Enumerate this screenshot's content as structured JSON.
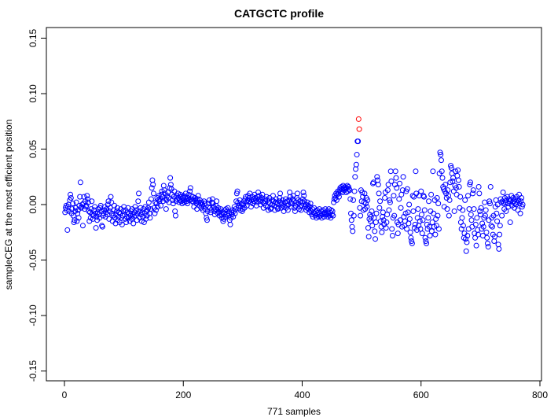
{
  "chart_data": {
    "type": "scatter",
    "title": "CATGCTC profile",
    "xlabel": "771 samples",
    "ylabel": "sampleCEG at the most efficient position",
    "xlim": [
      0,
      800
    ],
    "ylim": [
      -0.15,
      0.15
    ],
    "xticks": [
      "0",
      "200",
      "400",
      "600",
      "800"
    ],
    "yticks": [
      "-0.15",
      "-0.10",
      "-0.05",
      "0.00",
      "0.05",
      "0.10",
      "0.15"
    ],
    "grid": false,
    "marker": "open-circle",
    "point_color": "#0000ff",
    "highlight_color": "#ff0000",
    "highlight_indices": [
      495,
      496
    ],
    "x_start": 1,
    "y": [
      -0.007,
      -0.003,
      -0.001,
      -0.005,
      -0.023,
      -0.002,
      0.0,
      -0.006,
      0.004,
      0.009,
      0.006,
      -0.008,
      -0.004,
      0.001,
      -0.01,
      -0.016,
      -0.014,
      -0.006,
      -0.003,
      0.002,
      -0.015,
      -0.008,
      -0.005,
      -0.012,
      -0.001,
      0.007,
      0.02,
      -0.003,
      -0.002,
      0.0,
      -0.019,
      0.001,
      0.007,
      -0.004,
      0.003,
      -0.002,
      -0.001,
      0.008,
      0.005,
      0.002,
      -0.006,
      -0.015,
      -0.007,
      -0.012,
      -0.004,
      0.003,
      -0.009,
      -0.013,
      -0.01,
      -0.005,
      -0.002,
      -0.008,
      -0.021,
      -0.011,
      -0.014,
      -0.007,
      -0.004,
      -0.009,
      -0.012,
      -0.003,
      -0.001,
      -0.006,
      -0.019,
      -0.02,
      -0.01,
      -0.008,
      -0.005,
      -0.002,
      -0.011,
      -0.007,
      -0.004,
      -0.009,
      0.0,
      0.003,
      -0.013,
      -0.006,
      -0.003,
      0.007,
      0.002,
      -0.008,
      -0.015,
      -0.01,
      -0.005,
      -0.001,
      -0.012,
      -0.017,
      -0.009,
      -0.006,
      -0.003,
      -0.014,
      -0.011,
      -0.007,
      -0.016,
      -0.008,
      -0.004,
      -0.012,
      -0.018,
      -0.01,
      -0.006,
      -0.002,
      -0.009,
      -0.013,
      -0.005,
      -0.016,
      -0.011,
      -0.007,
      -0.003,
      -0.012,
      -0.008,
      -0.015,
      -0.01,
      -0.006,
      -0.013,
      -0.004,
      -0.009,
      -0.017,
      -0.011,
      -0.007,
      -0.002,
      -0.01,
      -0.005,
      -0.014,
      -0.008,
      0.003,
      0.01,
      -0.006,
      -0.012,
      -0.003,
      -0.009,
      -0.015,
      -0.007,
      -0.011,
      -0.004,
      -0.016,
      -0.008,
      -0.002,
      -0.013,
      -0.006,
      -0.01,
      -0.005,
      -0.003,
      0.002,
      -0.008,
      -0.012,
      -0.004,
      0.005,
      0.015,
      0.022,
      0.018,
      0.01,
      -0.003,
      -0.008,
      0.002,
      -0.005,
      0.001,
      0.006,
      -0.002,
      0.004,
      0.008,
      0.003,
      0.005,
      -0.001,
      0.009,
      0.012,
      0.007,
      0.003,
      0.017,
      0.013,
      0.01,
      0.005,
      -0.004,
      0.004,
      0.008,
      0.011,
      0.006,
      0.002,
      0.015,
      0.024,
      0.018,
      0.014,
      0.009,
      0.004,
      0.001,
      0.007,
      0.012,
      -0.006,
      -0.01,
      0.003,
      0.008,
      0.005,
      0.01,
      0.006,
      0.002,
      0.004,
      0.009,
      0.007,
      0.003,
      0.001,
      0.006,
      0.008,
      0.004,
      0.002,
      0.007,
      0.01,
      0.005,
      0.003,
      0.001,
      0.006,
      0.009,
      0.004,
      0.012,
      0.015,
      0.008,
      0.005,
      0.003,
      0.007,
      0.002,
      -0.002,
      0.004,
      0.006,
      0.003,
      0.001,
      -0.004,
      0.005,
      0.008,
      0.002,
      -0.001,
      0.004,
      0.001,
      -0.003,
      0.002,
      0.0,
      -0.005,
      -0.002,
      0.003,
      0.001,
      -0.004,
      -0.008,
      -0.012,
      -0.014,
      -0.006,
      -0.002,
      0.001,
      0.004,
      -0.003,
      -0.007,
      -0.005,
      0.002,
      0.005,
      0.001,
      -0.002,
      -0.006,
      -0.009,
      -0.004,
      -0.001,
      0.003,
      -0.005,
      -0.008,
      -0.003,
      -0.007,
      -0.01,
      -0.006,
      -0.004,
      -0.009,
      -0.012,
      -0.007,
      -0.015,
      -0.013,
      -0.008,
      -0.005,
      -0.011,
      -0.004,
      -0.009,
      -0.006,
      -0.003,
      -0.01,
      -0.008,
      -0.014,
      -0.018,
      -0.012,
      -0.007,
      -0.009,
      -0.005,
      -0.011,
      -0.006,
      -0.002,
      -0.008,
      -0.004,
      0.003,
      0.01,
      0.012,
      0.002,
      -0.003,
      -0.001,
      0.004,
      -0.005,
      -0.002,
      0.001,
      -0.006,
      -0.004,
      0.0,
      0.003,
      -0.003,
      0.005,
      0.007,
      0.002,
      -0.001,
      0.004,
      0.008,
      0.003,
      0.006,
      0.01,
      0.002,
      -0.002,
      0.004,
      0.007,
      0.001,
      0.005,
      0.003,
      0.009,
      0.006,
      0.004,
      -0.001,
      0.002,
      0.007,
      0.011,
      0.005,
      0.008,
      0.003,
      0.0,
      0.004,
      0.006,
      0.009,
      0.002,
      -0.003,
      0.001,
      0.005,
      0.003,
      -0.001,
      0.007,
      0.004,
      -0.002,
      -0.005,
      0.002,
      0.006,
      0.001,
      -0.004,
      -0.003,
      0.0,
      0.004,
      0.008,
      0.003,
      -0.001,
      -0.005,
      0.002,
      0.005,
      -0.002,
      0.001,
      -0.004,
      -0.003,
      0.003,
      0.006,
      0.01,
      0.002,
      -0.003,
      0.001,
      0.004,
      -0.001,
      -0.006,
      -0.002,
      0.002,
      0.005,
      -0.003,
      -0.001,
      0.003,
      -0.005,
      0.0,
      0.004,
      0.011,
      0.007,
      0.002,
      -0.002,
      0.001,
      0.005,
      0.008,
      0.003,
      -0.003,
      -0.006,
      -0.001,
      0.002,
      0.006,
      0.01,
      0.004,
      0.001,
      -0.004,
      -0.002,
      0.003,
      -0.005,
      -0.001,
      0.002,
      0.005,
      0.011,
      0.008,
      0.003,
      -0.002,
      0.0,
      -0.005,
      -0.003,
      0.002,
      -0.001,
      -0.004,
      -0.007,
      -0.002,
      0.001,
      -0.006,
      -0.009,
      -0.004,
      -0.011,
      -0.007,
      -0.003,
      -0.008,
      -0.01,
      -0.006,
      -0.012,
      -0.005,
      -0.009,
      -0.007,
      -0.011,
      -0.004,
      -0.008,
      -0.01,
      -0.006,
      -0.012,
      -0.009,
      -0.005,
      -0.008,
      -0.011,
      -0.007,
      -0.004,
      -0.009,
      -0.009,
      -0.006,
      -0.011,
      -0.008,
      -0.004,
      -0.01,
      -0.007,
      -0.012,
      -0.005,
      -0.009,
      -0.006,
      -0.01,
      0.002,
      0.005,
      0.008,
      0.006,
      0.01,
      0.004,
      0.009,
      0.012,
      0.01,
      0.007,
      0.013,
      0.015,
      0.012,
      0.016,
      0.014,
      0.011,
      0.017,
      0.015,
      0.013,
      0.016,
      0.014,
      0.011,
      0.015,
      0.017,
      0.012,
      0.016,
      0.014,
      0.013,
      0.005,
      -0.008,
      -0.014,
      -0.02,
      -0.024,
      0.004,
      -0.01,
      0.012,
      0.025,
      0.032,
      0.036,
      0.045,
      0.057,
      0.057,
      0.077,
      0.068,
      -0.003,
      -0.01,
      0.013,
      0.003,
      0.011,
      0.007,
      -0.005,
      0.002,
      0.01,
      -0.004,
      0.001,
      0.006,
      -0.002,
      0.004,
      -0.021,
      -0.029,
      -0.013,
      -0.009,
      -0.015,
      -0.011,
      -0.006,
      -0.019,
      0.019,
      0.02,
      -0.012,
      -0.024,
      -0.031,
      -0.016,
      -0.008,
      0.025,
      0.022,
      0.018,
      0.01,
      -0.003,
      0.003,
      -0.015,
      -0.02,
      -0.025,
      -0.011,
      -0.007,
      -0.014,
      -0.018,
      0.006,
      0.011,
      -0.021,
      -0.016,
      -0.009,
      0.013,
      0.018,
      -0.005,
      0.004,
      0.002,
      0.03,
      0.021,
      -0.022,
      -0.028,
      -0.012,
      0.008,
      -0.01,
      0.018,
      0.03,
      0.024,
      0.015,
      -0.016,
      -0.026,
      -0.018,
      0.005,
      0.019,
      -0.014,
      -0.003,
      0.009,
      -0.02,
      0.013,
      0.025,
      -0.011,
      -0.019,
      -0.015,
      -0.008,
      0.012,
      -0.022,
      0.014,
      -0.007,
      -0.017,
      0.0,
      -0.013,
      -0.025,
      -0.03,
      -0.033,
      -0.035,
      0.008,
      -0.006,
      0.007,
      -0.021,
      -0.018,
      0.03,
      0.01,
      -0.023,
      -0.012,
      -0.004,
      -0.019,
      0.008,
      -0.015,
      -0.022,
      0.012,
      -0.009,
      -0.026,
      -0.014,
      0.008,
      0.007,
      -0.005,
      -0.03,
      -0.033,
      -0.035,
      -0.018,
      -0.022,
      -0.012,
      0.003,
      -0.02,
      -0.028,
      -0.006,
      0.009,
      -0.024,
      -0.016,
      0.03,
      -0.008,
      -0.02,
      0.004,
      -0.027,
      -0.013,
      -0.019,
      0.006,
      -0.01,
      0.001,
      -0.022,
      0.028,
      0.047,
      0.045,
      0.04,
      0.03,
      0.024,
      0.016,
      0.014,
      -0.002,
      0.012,
      0.018,
      0.01,
      0.006,
      -0.004,
      0.013,
      0.008,
      -0.01,
      0.004,
      0.02,
      0.035,
      0.033,
      0.028,
      0.021,
      0.024,
      0.012,
      -0.006,
      0.017,
      0.03,
      0.015,
      0.009,
      0.026,
      0.031,
      0.022,
      0.016,
      -0.003,
      0.007,
      -0.016,
      -0.022,
      -0.012,
      -0.005,
      -0.019,
      -0.03,
      -0.026,
      0.004,
      -0.031,
      -0.042,
      -0.034,
      -0.028,
      0.008,
      -0.022,
      -0.004,
      0.018,
      0.02,
      -0.009,
      -0.014,
      -0.02,
      0.01,
      0.013,
      -0.004,
      -0.026,
      -0.03,
      -0.018,
      -0.037,
      -0.012,
      -0.023,
      -0.027,
      0.016,
      0.01,
      -0.006,
      -0.009,
      -0.003,
      -0.022,
      -0.017,
      -0.028,
      -0.02,
      -0.012,
      0.002,
      -0.01,
      -0.005,
      -0.025,
      -0.03,
      -0.035,
      -0.038,
      -0.014,
      0.003,
      0.001,
      0.016,
      -0.019,
      -0.012,
      -0.02,
      -0.027,
      -0.01,
      -0.033,
      -0.029,
      -0.002,
      0.004,
      -0.008,
      -0.015,
      0.0,
      -0.036,
      -0.04,
      -0.027,
      -0.019,
      0.005,
      0.002,
      -0.01,
      0.003,
      0.011,
      0.001,
      -0.004,
      0.006,
      0.002,
      -0.006,
      0.004,
      0.007,
      0.001,
      -0.002,
      0.005,
      0.003,
      -0.016,
      0.004,
      0.008,
      -0.001,
      0.002,
      0.006,
      0.003,
      -0.003,
      0.001,
      0.005,
      0.0,
      0.007,
      0.002,
      -0.005,
      0.004,
      0.009,
      0.001,
      -0.008,
      0.003,
      0.006,
      -0.002,
      0.0
    ]
  }
}
